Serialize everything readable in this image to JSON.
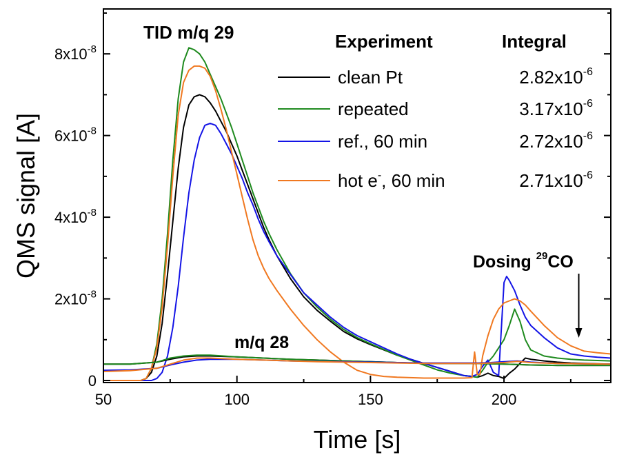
{
  "chart_data": {
    "type": "line",
    "xlabel": "Time [s]",
    "ylabel": "QMS signal [A]",
    "xlim": [
      50,
      240
    ],
    "ylim": [
      -5e-10,
      9.1e-08
    ],
    "x_ticks": [
      {
        "value": 50,
        "label": "50"
      },
      {
        "value": 100,
        "label": "100"
      },
      {
        "value": 150,
        "label": "150"
      },
      {
        "value": 200,
        "label": "200"
      }
    ],
    "y_ticks": [
      {
        "value": 0,
        "base": "0",
        "exp": ""
      },
      {
        "value": 2e-08,
        "base": "2x10",
        "exp": "-8"
      },
      {
        "value": 4e-08,
        "base": "4x10",
        "exp": "-8"
      },
      {
        "value": 6e-08,
        "base": "6x10",
        "exp": "-8"
      },
      {
        "value": 8e-08,
        "base": "8x10",
        "exp": "-8"
      }
    ],
    "annotations": {
      "tid": "TID m/q 29",
      "mq28": "m/q 28",
      "dosing_prefix": "Dosing ",
      "dosing_sup": "29",
      "dosing_suffix": "CO",
      "dosing_arrow_x": 228
    },
    "legend": {
      "header_experiment": "Experiment",
      "header_integral": "Integral",
      "entries": [
        {
          "label": "clean Pt",
          "label_sup": "",
          "label_tail": "",
          "integral_base": "2.82x10",
          "integral_exp": "-6",
          "color": "#000000"
        },
        {
          "label": "repeated",
          "label_sup": "",
          "label_tail": "",
          "integral_base": "3.17x10",
          "integral_exp": "-6",
          "color": "#1e8a1e"
        },
        {
          "label": "ref., 60 min",
          "label_sup": "",
          "label_tail": "",
          "integral_base": "2.72x10",
          "integral_exp": "-6",
          "color": "#1414e6"
        },
        {
          "label": "hot e",
          "label_sup": "-",
          "label_tail": ", 60 min",
          "integral_base": "2.71x10",
          "integral_exp": "-6",
          "color": "#f07820"
        }
      ]
    },
    "series": [
      {
        "name": "clean Pt",
        "color": "#000000",
        "x": [
          50,
          64,
          66,
          68,
          70,
          72,
          74,
          76,
          78,
          80,
          82,
          84,
          86,
          88,
          90,
          92,
          94,
          96,
          98,
          100,
          102,
          104,
          106,
          108,
          110,
          112,
          115,
          120,
          125,
          130,
          135,
          140,
          145,
          150,
          155,
          160,
          165,
          170,
          175,
          180,
          185,
          188,
          190,
          192,
          194,
          196,
          198,
          200,
          202,
          204,
          206,
          208,
          210,
          215,
          220,
          225,
          230,
          235,
          240
        ],
        "y": [
          0,
          0,
          0.05,
          0.2,
          0.6,
          1.4,
          2.6,
          3.9,
          5.2,
          6.2,
          6.75,
          6.95,
          7.0,
          6.95,
          6.8,
          6.6,
          6.35,
          6.1,
          5.8,
          5.5,
          5.15,
          4.8,
          4.45,
          4.1,
          3.75,
          3.45,
          3.05,
          2.5,
          2.05,
          1.72,
          1.45,
          1.2,
          1.02,
          0.88,
          0.75,
          0.62,
          0.52,
          0.42,
          0.32,
          0.22,
          0.12,
          0.1,
          0.08,
          0.12,
          0.18,
          0.12,
          0.1,
          0.05,
          0.18,
          0.28,
          0.42,
          0.55,
          0.52,
          0.48,
          0.45,
          0.43,
          0.42,
          0.41,
          0.4
        ]
      },
      {
        "name": "repeated",
        "color": "#1e8a1e",
        "x": [
          50,
          64,
          66,
          68,
          70,
          72,
          74,
          76,
          78,
          80,
          82,
          84,
          86,
          88,
          90,
          92,
          94,
          96,
          98,
          100,
          102,
          104,
          106,
          108,
          110,
          112,
          115,
          120,
          125,
          130,
          135,
          140,
          145,
          150,
          155,
          160,
          165,
          170,
          175,
          180,
          185,
          188,
          190,
          192,
          194,
          196,
          198,
          200,
          202,
          204,
          206,
          208,
          210,
          215,
          220,
          225,
          230,
          235,
          240
        ],
        "y": [
          0,
          0,
          0.05,
          0.3,
          0.9,
          2.0,
          3.6,
          5.4,
          6.9,
          7.8,
          8.15,
          8.1,
          8.0,
          7.8,
          7.5,
          7.2,
          6.9,
          6.55,
          6.2,
          5.8,
          5.4,
          5.0,
          4.6,
          4.25,
          3.9,
          3.6,
          3.2,
          2.62,
          2.15,
          1.8,
          1.5,
          1.25,
          1.05,
          0.9,
          0.76,
          0.62,
          0.5,
          0.38,
          0.26,
          0.18,
          0.12,
          0.1,
          0.08,
          0.25,
          0.45,
          0.6,
          0.8,
          1.0,
          1.35,
          1.75,
          1.45,
          1.0,
          0.75,
          0.6,
          0.55,
          0.52,
          0.5,
          0.49,
          0.48
        ]
      },
      {
        "name": "ref., 60 min",
        "color": "#1414e6",
        "x": [
          50,
          64,
          66,
          68,
          70,
          72,
          74,
          76,
          78,
          80,
          82,
          84,
          86,
          88,
          90,
          92,
          94,
          96,
          98,
          100,
          102,
          104,
          106,
          108,
          110,
          112,
          115,
          120,
          125,
          130,
          135,
          140,
          145,
          150,
          155,
          160,
          165,
          170,
          175,
          180,
          185,
          188,
          190,
          192,
          194,
          196,
          198,
          200,
          201,
          202,
          204,
          206,
          208,
          210,
          215,
          220,
          225,
          230,
          235,
          240
        ],
        "y": [
          0,
          0,
          0,
          0,
          0.05,
          0.2,
          0.6,
          1.3,
          2.3,
          3.5,
          4.6,
          5.4,
          5.95,
          6.25,
          6.3,
          6.25,
          6.05,
          5.8,
          5.55,
          5.25,
          4.95,
          4.6,
          4.3,
          3.95,
          3.65,
          3.4,
          3.05,
          2.6,
          2.15,
          1.85,
          1.55,
          1.3,
          1.1,
          0.95,
          0.8,
          0.65,
          0.52,
          0.42,
          0.32,
          0.22,
          0.12,
          0.1,
          0.15,
          0.35,
          0.5,
          0.2,
          0.12,
          2.4,
          2.55,
          2.45,
          2.2,
          1.85,
          1.55,
          1.35,
          1.05,
          0.8,
          0.65,
          0.6,
          0.57,
          0.55
        ]
      },
      {
        "name": "hot e-, 60 min",
        "color": "#f07820",
        "x": [
          50,
          64,
          66,
          68,
          70,
          72,
          74,
          76,
          78,
          80,
          82,
          84,
          86,
          88,
          90,
          92,
          94,
          96,
          98,
          100,
          102,
          104,
          106,
          108,
          110,
          112,
          115,
          120,
          125,
          130,
          135,
          140,
          145,
          150,
          155,
          160,
          165,
          170,
          175,
          180,
          185,
          188,
          189,
          190,
          191,
          192,
          194,
          196,
          198,
          200,
          202,
          204,
          206,
          208,
          210,
          215,
          220,
          225,
          230,
          235,
          240
        ],
        "y": [
          0,
          0,
          0.05,
          0.3,
          0.8,
          1.8,
          3.3,
          5.0,
          6.5,
          7.3,
          7.6,
          7.7,
          7.7,
          7.65,
          7.45,
          7.1,
          6.65,
          6.15,
          5.6,
          5.05,
          4.5,
          3.95,
          3.45,
          3.05,
          2.75,
          2.5,
          2.2,
          1.75,
          1.35,
          1.0,
          0.7,
          0.45,
          0.25,
          0.15,
          0.1,
          0.08,
          0.07,
          0.06,
          0.06,
          0.06,
          0.06,
          0.07,
          0.7,
          0.15,
          0.15,
          0.6,
          1.1,
          1.5,
          1.75,
          1.9,
          1.95,
          2.0,
          1.95,
          1.85,
          1.7,
          1.35,
          1.05,
          0.85,
          0.72,
          0.68,
          0.65
        ]
      },
      {
        "name": "m/q 28 clean Pt",
        "color": "#000000",
        "x": [
          50,
          60,
          70,
          75,
          80,
          85,
          90,
          100,
          110,
          120,
          130,
          140,
          150,
          160,
          170,
          180,
          190,
          195,
          200,
          210,
          220,
          230,
          240
        ],
        "y": [
          0.4,
          0.4,
          0.45,
          0.52,
          0.58,
          0.6,
          0.6,
          0.58,
          0.55,
          0.52,
          0.5,
          0.48,
          0.46,
          0.44,
          0.42,
          0.42,
          0.42,
          0.41,
          0.4,
          0.38,
          0.37,
          0.37,
          0.37
        ]
      },
      {
        "name": "m/q 28 repeated",
        "color": "#1e8a1e",
        "x": [
          50,
          60,
          70,
          75,
          80,
          85,
          90,
          100,
          110,
          120,
          130,
          140,
          150,
          160,
          170,
          180,
          190,
          195,
          200,
          210,
          220,
          230,
          240
        ],
        "y": [
          0.4,
          0.4,
          0.45,
          0.55,
          0.6,
          0.62,
          0.62,
          0.58,
          0.55,
          0.52,
          0.5,
          0.48,
          0.46,
          0.44,
          0.42,
          0.42,
          0.42,
          0.41,
          0.4,
          0.38,
          0.37,
          0.37,
          0.37
        ]
      },
      {
        "name": "m/q 28 ref., 60 min",
        "color": "#1414e6",
        "x": [
          50,
          60,
          70,
          75,
          80,
          85,
          90,
          100,
          110,
          120,
          130,
          140,
          150,
          160,
          170,
          180,
          190,
          195,
          200,
          205,
          210,
          220,
          230,
          240
        ],
        "y": [
          0.25,
          0.26,
          0.3,
          0.38,
          0.45,
          0.5,
          0.52,
          0.52,
          0.5,
          0.48,
          0.47,
          0.46,
          0.45,
          0.44,
          0.43,
          0.43,
          0.43,
          0.44,
          0.46,
          0.48,
          0.45,
          0.42,
          0.41,
          0.4
        ]
      },
      {
        "name": "m/q 28 hot e-, 60 min",
        "color": "#f07820",
        "x": [
          50,
          60,
          70,
          75,
          80,
          85,
          90,
          100,
          110,
          120,
          130,
          140,
          150,
          160,
          170,
          180,
          190,
          195,
          200,
          205,
          210,
          220,
          230,
          240
        ],
        "y": [
          0.22,
          0.24,
          0.3,
          0.4,
          0.5,
          0.55,
          0.55,
          0.52,
          0.5,
          0.48,
          0.46,
          0.45,
          0.44,
          0.43,
          0.42,
          0.42,
          0.42,
          0.43,
          0.44,
          0.47,
          0.44,
          0.42,
          0.41,
          0.4
        ]
      }
    ]
  }
}
